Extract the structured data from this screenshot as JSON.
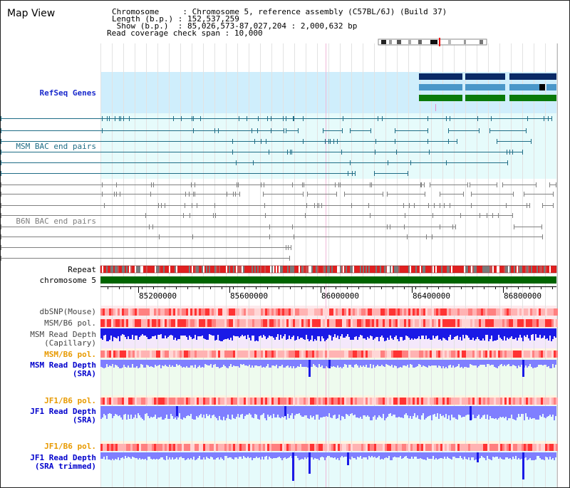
{
  "view_title": "Map View",
  "header": {
    "lines": [
      {
        "label": "Chromosome     ",
        "sep": ":",
        "value": "Chromosome 5, reference assembly (C57BL/6J) (Build 37)"
      },
      {
        "label": "Length (b.p.) ",
        "sep": ":",
        "value": "152,537,259"
      },
      {
        "label": " Show (b.p.)  ",
        "sep": ":",
        "value": "85,026,573-87,027,204 : 2,000,632 bp"
      },
      {
        "label": "Read coverage check span",
        "sep": ":",
        "value": "10,000"
      }
    ]
  },
  "tracks": {
    "refseq": "RefSeq Genes",
    "msm_bac": "MSM BAC end pairs",
    "b6n_bac": "B6N BAC end pairs",
    "repeat": "Repeat",
    "chromosome": "chromosome 5",
    "dbsnp": "dbSNP(Mouse)",
    "msm_b6_pol_1": "MSM/B6 pol.",
    "msm_read_depth_cap_1": "MSM Read Depth",
    "msm_read_depth_cap_2": "(Capillary)",
    "msm_b6_pol_2": "MSM/B6 pol.",
    "msm_read_depth_sra_1": "MSM Read Depth",
    "msm_read_depth_sra_2": "(SRA)",
    "jf1_b6_pol_1": "JF1/B6 pol.",
    "jf1_read_depth_sra_1": "JF1 Read Depth",
    "jf1_read_depth_sra_2": "(SRA)",
    "jf1_b6_pol_2": "JF1/B6 pol.",
    "jf1_read_depth_trim_1": "JF1 Read Depth",
    "jf1_read_depth_trim_2": "(SRA trimmed)"
  },
  "axis_ticks": [
    "85200000",
    "85600000",
    "86000000",
    "86400000",
    "86800000"
  ],
  "colors": {
    "refseq_bg": "#cfeefc",
    "refseq_dark": "#0a2a66",
    "refseq_mid": "#4a97c9",
    "refseq_green": "#0a7a0a",
    "msm_bac": "#1f6d86",
    "b6n_bac": "#808080",
    "msm_label": "#1f6d86",
    "b6n_label": "#808080",
    "blue_label": "#0000cc",
    "orange_label": "#e89a00",
    "repeat_red": "#e02020",
    "repeat_grey": "#7a7a7a",
    "chromosome_green": "#006400",
    "depth_blue": "#1a1ae6",
    "depth_light": "#7f7fff",
    "pol_light": "#ffb3b3",
    "pol_dark": "#ff3333"
  }
}
